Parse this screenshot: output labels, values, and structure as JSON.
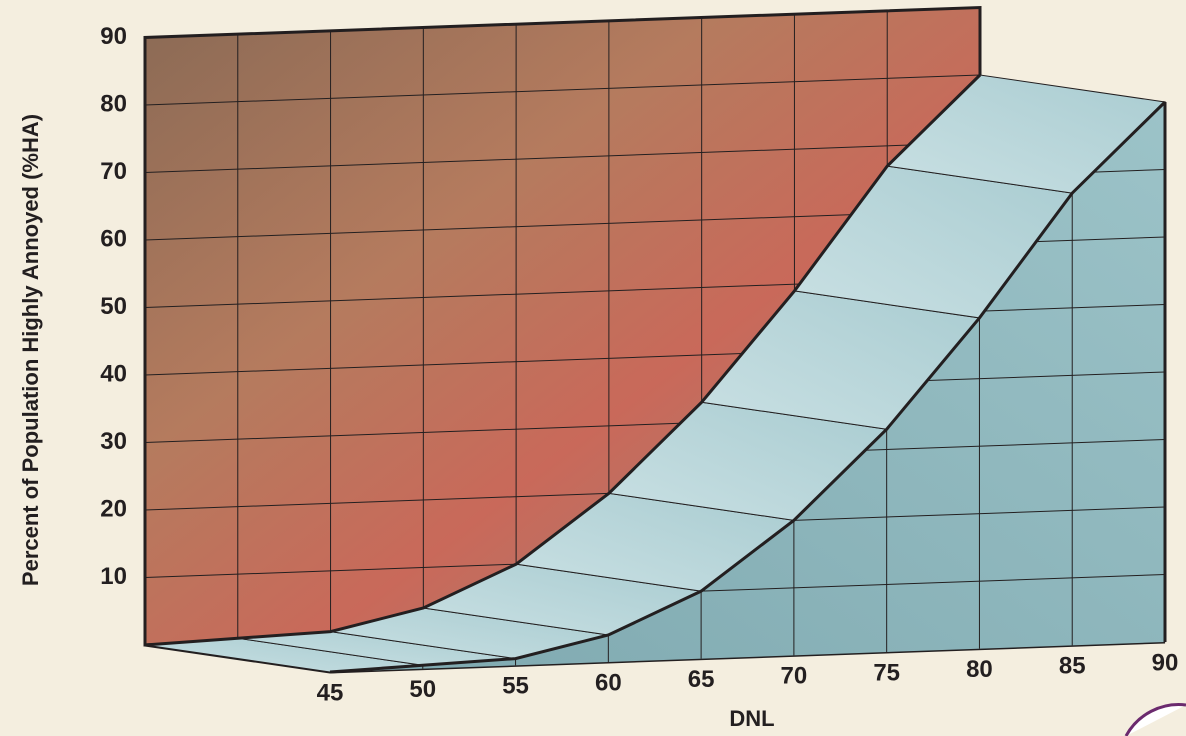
{
  "chart_data": {
    "type": "area3d",
    "x_label": "DNL",
    "y_label": "Percent of Population Highly Annoyed (%HA)",
    "x": [
      45,
      50,
      55,
      60,
      65,
      70,
      75,
      80,
      85,
      90
    ],
    "values": [
      0,
      0.5,
      1,
      4,
      10,
      20,
      33,
      49,
      67,
      80
    ],
    "xlim": [
      45,
      90
    ],
    "xticks": [
      45,
      50,
      55,
      60,
      65,
      70,
      75,
      80,
      85,
      90
    ],
    "ylim": [
      0,
      90
    ],
    "yticks": [
      10,
      20,
      30,
      40,
      50,
      60,
      70,
      80,
      90
    ],
    "grid": true
  }
}
